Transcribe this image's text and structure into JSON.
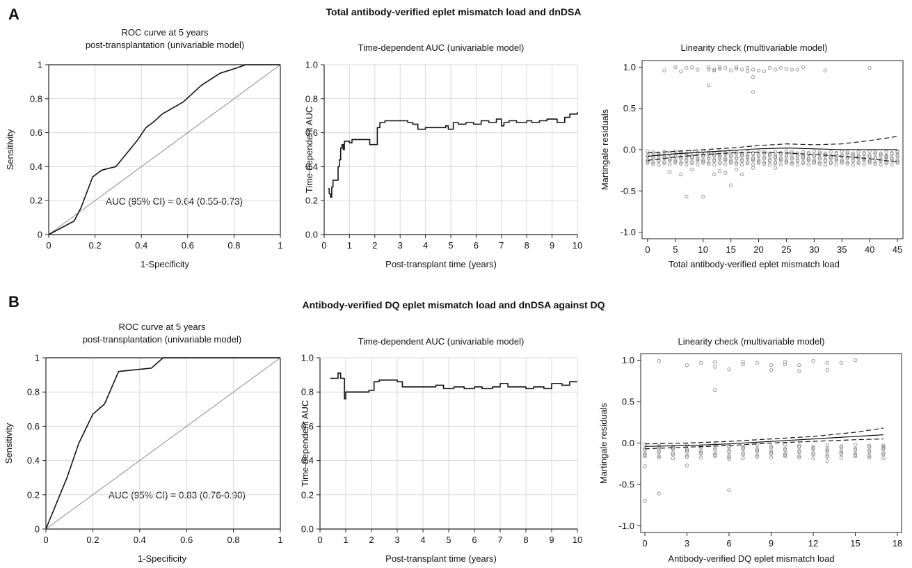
{
  "panels": [
    {
      "letter": "A",
      "title": "Total antibody-verified eplet mismatch load and dnDSA",
      "charts": [
        {
          "type": "line",
          "title": "ROC curve at 5 years",
          "title2": "post-transplantation (univariable model)",
          "xlabel": "1-Specificity",
          "ylabel": "Sensitivity",
          "xlim": [
            0,
            1
          ],
          "ylim": [
            0,
            1
          ],
          "xticks": [
            "0",
            "0.2",
            "0.4",
            "0.6",
            "0.8",
            "1"
          ],
          "yticks": [
            "0",
            "0.2",
            "0.4",
            "0.6",
            "0.8",
            "1"
          ],
          "grid": true,
          "annotation": "AUC (95% CI) = 0.64 (0.55-0.73)",
          "reference_line": [
            [
              0,
              0
            ],
            [
              1,
              1
            ]
          ],
          "series": [
            {
              "x": [
                0,
                0.11,
                0.14,
                0.19,
                0.23,
                0.29,
                0.38,
                0.42,
                0.45,
                0.49,
                0.58,
                0.66,
                0.74,
                0.81,
                0.85,
                0.9,
                1
              ],
              "y": [
                0,
                0.08,
                0.16,
                0.34,
                0.38,
                0.4,
                0.55,
                0.63,
                0.66,
                0.71,
                0.78,
                0.88,
                0.95,
                0.98,
                1,
                1,
                1
              ]
            }
          ]
        },
        {
          "type": "line",
          "title": "Time-dependent AUC (univariable model)",
          "xlabel": "Post-transplant time (years)",
          "ylabel": "Time-dependent AUC",
          "xlim": [
            0,
            10
          ],
          "ylim": [
            0,
            1
          ],
          "xticks": [
            "0",
            "1",
            "2",
            "3",
            "4",
            "5",
            "6",
            "7",
            "8",
            "9",
            "10"
          ],
          "yticks": [
            "0.0",
            "0.2",
            "0.4",
            "0.6",
            "0.8",
            "1.0"
          ],
          "grid": true,
          "series": [
            {
              "x": [
                0.15,
                0.2,
                0.25,
                0.3,
                0.35,
                0.5,
                0.55,
                0.6,
                0.65,
                0.7,
                0.75,
                0.8,
                0.9,
                1.0,
                1.1,
                1.5,
                1.8,
                2.0,
                2.1,
                2.2,
                2.4,
                2.6,
                3.0,
                3.3,
                3.5,
                3.7,
                4.0,
                4.4,
                4.8,
                4.9,
                5.1,
                5.3,
                5.6,
                5.9,
                6.2,
                6.5,
                6.8,
                7.0,
                7.1,
                7.3,
                7.6,
                8.0,
                8.2,
                8.5,
                8.8,
                9.2,
                9.5,
                9.7,
                10.0
              ],
              "y": [
                0.27,
                0.24,
                0.22,
                0.28,
                0.32,
                0.32,
                0.4,
                0.44,
                0.51,
                0.53,
                0.5,
                0.55,
                0.55,
                0.54,
                0.56,
                0.56,
                0.53,
                0.53,
                0.63,
                0.66,
                0.67,
                0.67,
                0.67,
                0.66,
                0.65,
                0.62,
                0.63,
                0.63,
                0.64,
                0.62,
                0.66,
                0.65,
                0.66,
                0.65,
                0.67,
                0.66,
                0.68,
                0.64,
                0.66,
                0.67,
                0.66,
                0.67,
                0.66,
                0.67,
                0.68,
                0.66,
                0.69,
                0.71,
                0.72
              ]
            }
          ]
        },
        {
          "type": "scatter",
          "title": "Linearity check (multivariable model)",
          "xlabel": "Total antibody-verified eplet mismatch load",
          "ylabel": "Martingale residuals",
          "xlim": [
            -1,
            46
          ],
          "ylim": [
            -1.08,
            1.08
          ],
          "xticks": [
            "0",
            "5",
            "10",
            "15",
            "20",
            "25",
            "30",
            "35",
            "40",
            "45"
          ],
          "yticks": [
            "-1.0",
            "-0.5",
            "0.0",
            "0.5",
            "1.0"
          ],
          "grid": false,
          "points_upper": [
            [
              3,
              0.96
            ],
            [
              5,
              1.0
            ],
            [
              6,
              0.95
            ],
            [
              7,
              0.99
            ],
            [
              8,
              1.0
            ],
            [
              9,
              0.97
            ],
            [
              11,
              1.0
            ],
            [
              11,
              0.97
            ],
            [
              12,
              0.97
            ],
            [
              12,
              0.96
            ],
            [
              13,
              0.98
            ],
            [
              13,
              1.0
            ],
            [
              14,
              0.99
            ],
            [
              15,
              0.96
            ],
            [
              16,
              1.0
            ],
            [
              16,
              0.98
            ],
            [
              17,
              0.97
            ],
            [
              18,
              0.99
            ],
            [
              18,
              0.95
            ],
            [
              19,
              0.97
            ],
            [
              19,
              0.88
            ],
            [
              20,
              0.96
            ],
            [
              21,
              0.95
            ],
            [
              22,
              0.99
            ],
            [
              23,
              0.97
            ],
            [
              24,
              0.99
            ],
            [
              25,
              0.98
            ],
            [
              26,
              0.97
            ],
            [
              27,
              0.97
            ],
            [
              28,
              1.0
            ],
            [
              32,
              0.96
            ],
            [
              40,
              0.99
            ],
            [
              11,
              0.78
            ],
            [
              19,
              0.7
            ]
          ],
          "points_lower": [
            [
              7,
              -0.57
            ],
            [
              10,
              -0.57
            ],
            [
              15,
              -0.43
            ],
            [
              4,
              -0.27
            ],
            [
              6,
              -0.3
            ],
            [
              8,
              -0.24
            ],
            [
              12,
              -0.3
            ],
            [
              13,
              -0.26
            ],
            [
              14,
              -0.28
            ],
            [
              16,
              -0.24
            ],
            [
              17,
              -0.3
            ],
            [
              19,
              -0.22
            ],
            [
              23,
              -0.22
            ],
            [
              43,
              -0.08
            ],
            [
              45,
              -0.03
            ]
          ],
          "fit": {
            "x": [
              0,
              5,
              10,
              15,
              20,
              25,
              30,
              35,
              40,
              45
            ],
            "y": [
              -0.08,
              -0.05,
              -0.03,
              -0.01,
              0.01,
              0.02,
              0.01,
              0.0,
              0.0,
              0.0
            ]
          },
          "ci_upper": {
            "x": [
              0,
              5,
              10,
              15,
              20,
              25,
              30,
              35,
              40,
              45
            ],
            "y": [
              -0.04,
              -0.02,
              0.0,
              0.02,
              0.05,
              0.07,
              0.06,
              0.07,
              0.11,
              0.16
            ]
          },
          "ci_lower": {
            "x": [
              0,
              5,
              10,
              15,
              20,
              25,
              30,
              35,
              40,
              45
            ],
            "y": [
              -0.13,
              -0.09,
              -0.06,
              -0.04,
              -0.03,
              -0.04,
              -0.06,
              -0.08,
              -0.11,
              -0.15
            ]
          }
        }
      ]
    },
    {
      "letter": "B",
      "title": "Antibody-verified DQ eplet mismatch load and dnDSA against DQ",
      "charts": [
        {
          "type": "line",
          "title": "ROC curve at 5 years",
          "title2": "post-transplantation (univariable model)",
          "xlabel": "1-Specificity",
          "ylabel": "Sensitivity",
          "xlim": [
            0,
            1
          ],
          "ylim": [
            0,
            1
          ],
          "xticks": [
            "0",
            "0.2",
            "0.4",
            "0.6",
            "0.8",
            "1"
          ],
          "yticks": [
            "0",
            "0.2",
            "0.4",
            "0.6",
            "0.8",
            "1"
          ],
          "grid": true,
          "annotation": "AUC (95% CI) = 0.83 (0.76-0.90)",
          "reference_line": [
            [
              0,
              0
            ],
            [
              1,
              1
            ]
          ],
          "series": [
            {
              "x": [
                0,
                0.09,
                0.14,
                0.2,
                0.25,
                0.31,
                0.45,
                0.5,
                0.6,
                1.0
              ],
              "y": [
                0,
                0.3,
                0.5,
                0.67,
                0.73,
                0.92,
                0.94,
                1.0,
                1.0,
                1.0
              ]
            }
          ]
        },
        {
          "type": "line",
          "title": "Time-dependent AUC (univariable model)",
          "xlabel": "Post-transplant time (years)",
          "ylabel": "Time-dependent AUC",
          "xlim": [
            0,
            10
          ],
          "ylim": [
            0,
            1
          ],
          "xticks": [
            "0",
            "1",
            "2",
            "3",
            "4",
            "5",
            "6",
            "7",
            "8",
            "9",
            "10"
          ],
          "yticks": [
            "0.0",
            "0.2",
            "0.4",
            "0.6",
            "0.8",
            "1.0"
          ],
          "grid": true,
          "series": [
            {
              "x": [
                0.4,
                0.6,
                0.7,
                0.75,
                0.8,
                0.9,
                0.95,
                1.0,
                1.05,
                1.5,
                1.9,
                2.1,
                2.3,
                2.6,
                3.0,
                3.2,
                3.5,
                4.0,
                4.5,
                4.8,
                5.2,
                5.6,
                6.0,
                6.3,
                6.7,
                7.0,
                7.3,
                7.7,
                8.0,
                8.3,
                8.7,
                9.0,
                9.4,
                9.7,
                10.0
              ],
              "y": [
                0.88,
                0.88,
                0.91,
                0.91,
                0.88,
                0.88,
                0.76,
                0.8,
                0.8,
                0.8,
                0.81,
                0.86,
                0.87,
                0.87,
                0.86,
                0.83,
                0.83,
                0.83,
                0.84,
                0.82,
                0.83,
                0.82,
                0.83,
                0.82,
                0.83,
                0.85,
                0.83,
                0.83,
                0.82,
                0.83,
                0.82,
                0.85,
                0.84,
                0.86,
                0.86
              ]
            }
          ]
        },
        {
          "type": "scatter",
          "title": "Linearity check (multivariable model)",
          "xlabel": "Antibody-verified DQ eplet mismatch load",
          "ylabel": "Martingale residuals",
          "xlim": [
            -0.3,
            18.3
          ],
          "ylim": [
            -1.08,
            1.08
          ],
          "xticks": [
            "0",
            "3",
            "6",
            "9",
            "12",
            "15",
            "18"
          ],
          "yticks": [
            "-1.0",
            "-0.5",
            "0.0",
            "0.5",
            "1.0"
          ],
          "grid": false,
          "points_upper": [
            [
              1,
              0.99
            ],
            [
              3,
              0.94
            ],
            [
              4,
              0.97
            ],
            [
              5,
              0.98
            ],
            [
              5,
              0.92
            ],
            [
              6,
              0.89
            ],
            [
              7,
              0.98
            ],
            [
              7,
              0.95
            ],
            [
              8,
              0.97
            ],
            [
              9,
              0.94
            ],
            [
              9,
              0.88
            ],
            [
              10,
              0.98
            ],
            [
              10,
              0.95
            ],
            [
              11,
              0.94
            ],
            [
              11,
              0.87
            ],
            [
              12,
              0.99
            ],
            [
              13,
              0.97
            ],
            [
              13,
              0.88
            ],
            [
              14,
              0.97
            ],
            [
              15,
              1.0
            ],
            [
              5,
              0.64
            ]
          ],
          "points_lower": [
            [
              0,
              -0.7
            ],
            [
              1,
              -0.61
            ],
            [
              6,
              -0.57
            ],
            [
              0,
              -0.28
            ],
            [
              3,
              -0.27
            ],
            [
              6,
              -0.19
            ],
            [
              13,
              -0.22
            ],
            [
              17,
              -0.03
            ]
          ],
          "fit": {
            "x": [
              0,
              3,
              6,
              9,
              12,
              15,
              17
            ],
            "y": [
              -0.04,
              -0.03,
              -0.01,
              0.02,
              0.05,
              0.08,
              0.1
            ]
          },
          "ci_upper": {
            "x": [
              0,
              3,
              6,
              9,
              12,
              15,
              17
            ],
            "y": [
              -0.01,
              0.0,
              0.02,
              0.05,
              0.08,
              0.13,
              0.18
            ]
          },
          "ci_lower": {
            "x": [
              0,
              3,
              6,
              9,
              12,
              15,
              17
            ],
            "y": [
              -0.07,
              -0.05,
              -0.03,
              0.0,
              0.02,
              0.04,
              0.05
            ]
          }
        }
      ]
    }
  ]
}
